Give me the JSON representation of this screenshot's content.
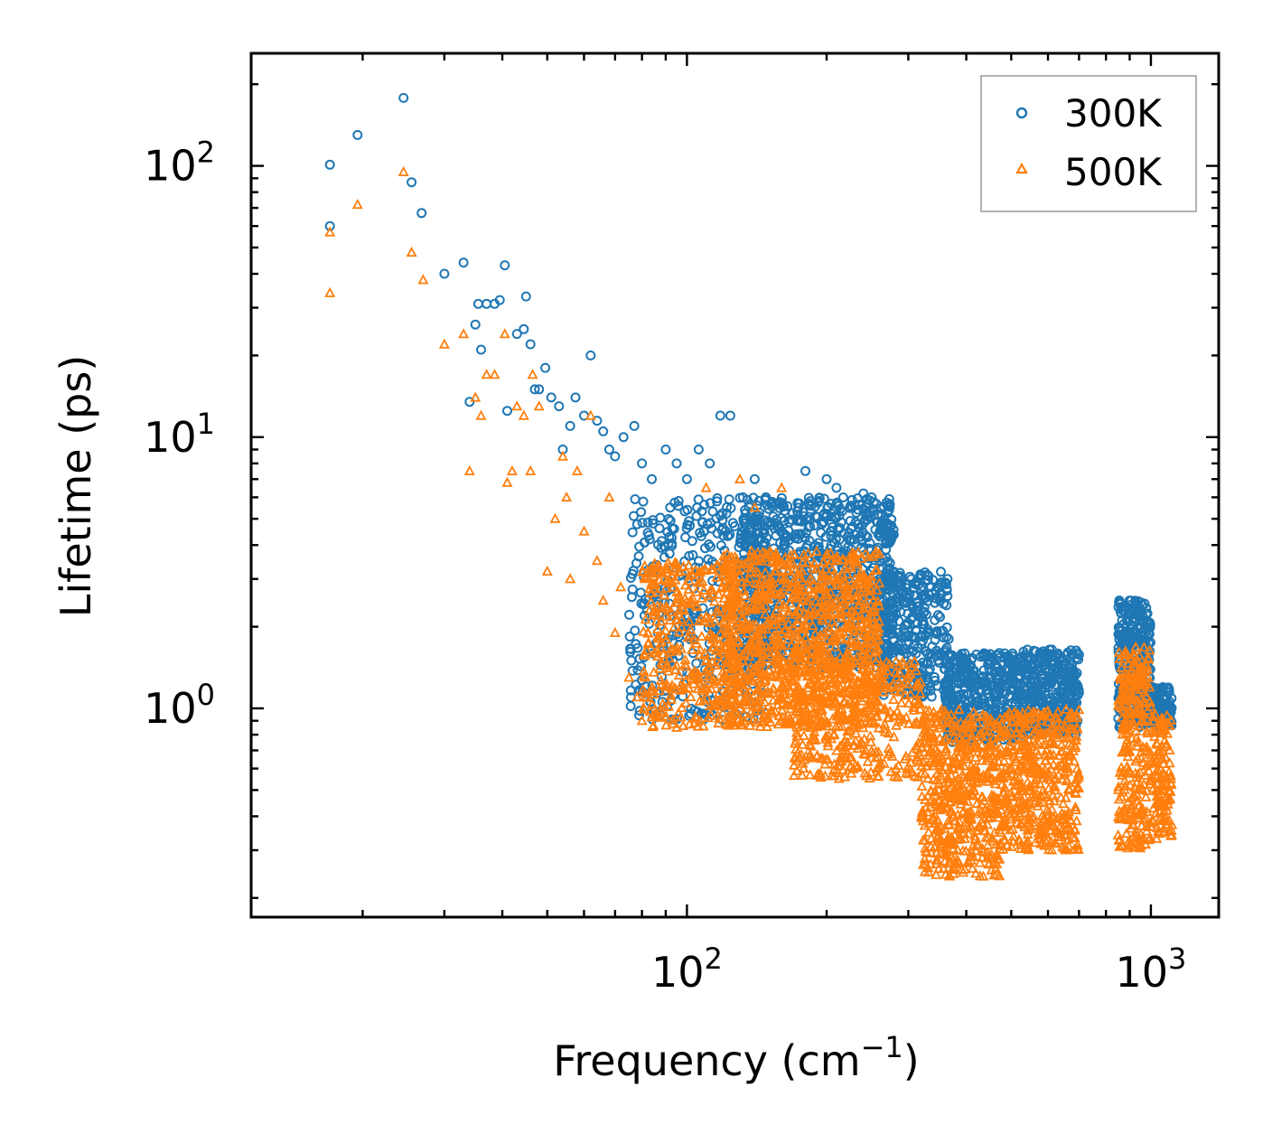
{
  "chart_data": {
    "type": "scatter",
    "xscale": "log",
    "yscale": "log",
    "xlabel": "Frequency (cm",
    "xlabel_sup": "−1",
    "xlabel_close": ")",
    "ylabel": "Lifetime (ps)",
    "xlim": [
      11.5,
      1400
    ],
    "ylim": [
      0.17,
      260
    ],
    "xticks": [
      {
        "value": 100,
        "base": "10",
        "exp": "2"
      },
      {
        "value": 1000,
        "base": "10",
        "exp": "3"
      }
    ],
    "yticks": [
      {
        "value": 1,
        "base": "10",
        "exp": "0"
      },
      {
        "value": 10,
        "base": "10",
        "exp": "1"
      },
      {
        "value": 100,
        "base": "10",
        "exp": "2"
      }
    ],
    "legend_position": "top-right",
    "series": [
      {
        "name": "300K",
        "marker": "circle",
        "color": "#1f77b4",
        "points": [
          [
            17,
            101
          ],
          [
            17,
            60
          ],
          [
            19.5,
            130
          ],
          [
            24.5,
            178
          ],
          [
            25.5,
            87
          ],
          [
            26.8,
            67
          ],
          [
            30,
            40
          ],
          [
            33,
            44
          ],
          [
            34,
            13.5
          ],
          [
            35,
            26
          ],
          [
            35.5,
            31
          ],
          [
            36,
            21
          ],
          [
            37,
            31
          ],
          [
            38.5,
            31
          ],
          [
            39.5,
            32
          ],
          [
            40.5,
            43
          ],
          [
            41,
            12.5
          ],
          [
            43,
            24
          ],
          [
            44.5,
            25
          ],
          [
            45,
            33
          ],
          [
            46,
            22
          ],
          [
            47,
            15
          ],
          [
            48,
            15
          ],
          [
            49.5,
            18
          ],
          [
            51,
            14
          ],
          [
            53,
            13
          ],
          [
            54,
            9
          ],
          [
            56,
            11
          ],
          [
            57.5,
            14
          ],
          [
            60,
            12
          ],
          [
            62,
            20
          ],
          [
            64,
            11.5
          ],
          [
            66,
            10.5
          ],
          [
            68,
            9
          ],
          [
            70,
            8.5
          ],
          [
            73,
            10
          ],
          [
            77,
            11
          ],
          [
            80,
            8
          ],
          [
            84,
            7
          ],
          [
            90,
            9
          ],
          [
            95,
            8
          ],
          [
            100,
            7
          ],
          [
            106,
            9
          ],
          [
            112,
            8
          ],
          [
            118,
            12
          ],
          [
            124,
            12
          ],
          [
            132,
            6
          ],
          [
            140,
            7
          ],
          [
            148,
            6
          ],
          [
            180,
            7.5
          ],
          [
            200,
            7
          ],
          [
            210,
            6.5
          ],
          [
            240,
            6.2
          ],
          [
            250,
            6
          ]
        ],
        "clusters": [
          {
            "x": [
              75,
              150
            ],
            "y": [
              0.9,
              6
            ],
            "n": 420
          },
          {
            "x": [
              130,
              280
            ],
            "y": [
              1.4,
              6
            ],
            "n": 900
          },
          {
            "x": [
              260,
              370
            ],
            "y": [
              1.1,
              3.2
            ],
            "n": 320
          },
          {
            "x": [
              360,
              520
            ],
            "y": [
              0.75,
              1.6
            ],
            "n": 420
          },
          {
            "x": [
              520,
              700
            ],
            "y": [
              0.8,
              1.65
            ],
            "n": 360
          },
          {
            "x": [
              850,
              1000
            ],
            "y": [
              0.85,
              2.5
            ],
            "n": 320
          },
          {
            "x": [
              1000,
              1110
            ],
            "y": [
              0.85,
              1.2
            ],
            "n": 120
          }
        ]
      },
      {
        "name": "500K",
        "marker": "triangle",
        "color": "#ff7f0e",
        "points": [
          [
            17,
            57
          ],
          [
            17,
            34
          ],
          [
            19.5,
            72
          ],
          [
            24.5,
            95
          ],
          [
            25.5,
            48
          ],
          [
            27,
            38
          ],
          [
            30,
            22
          ],
          [
            33,
            24
          ],
          [
            34,
            7.5
          ],
          [
            35,
            14
          ],
          [
            36,
            12
          ],
          [
            37,
            17
          ],
          [
            38.5,
            17
          ],
          [
            40.5,
            24
          ],
          [
            41,
            6.8
          ],
          [
            42,
            7.5
          ],
          [
            43,
            13
          ],
          [
            44.5,
            12
          ],
          [
            46,
            7.5
          ],
          [
            46.5,
            17
          ],
          [
            48,
            13
          ],
          [
            50,
            3.2
          ],
          [
            52,
            5
          ],
          [
            54,
            8.5
          ],
          [
            55,
            6
          ],
          [
            56,
            3
          ],
          [
            58,
            7.5
          ],
          [
            60,
            4.5
          ],
          [
            62,
            12
          ],
          [
            64,
            3.5
          ],
          [
            66,
            2.5
          ],
          [
            68,
            6
          ],
          [
            70,
            1.9
          ],
          [
            72,
            2.8
          ],
          [
            75,
            1.3
          ],
          [
            78,
            1.1
          ],
          [
            80,
            0.9
          ],
          [
            85,
            0.95
          ],
          [
            90,
            1.2
          ],
          [
            95,
            0.85
          ],
          [
            110,
            6.5
          ],
          [
            130,
            7.0
          ],
          [
            140,
            5.5
          ],
          [
            160,
            6.5
          ]
        ],
        "clusters": [
          {
            "x": [
              80,
              130
            ],
            "y": [
              0.85,
              3.5
            ],
            "n": 380
          },
          {
            "x": [
              120,
              260
            ],
            "y": [
              0.85,
              3.8
            ],
            "n": 1000
          },
          {
            "x": [
              170,
              320
            ],
            "y": [
              0.55,
              1.5
            ],
            "n": 380
          },
          {
            "x": [
              320,
              480
            ],
            "y": [
              0.24,
              1.0
            ],
            "n": 550
          },
          {
            "x": [
              480,
              700
            ],
            "y": [
              0.3,
              1.0
            ],
            "n": 450
          },
          {
            "x": [
              850,
              1000
            ],
            "y": [
              0.3,
              1.7
            ],
            "n": 280
          },
          {
            "x": [
              1000,
              1110
            ],
            "y": [
              0.33,
              0.95
            ],
            "n": 130
          }
        ]
      }
    ]
  }
}
